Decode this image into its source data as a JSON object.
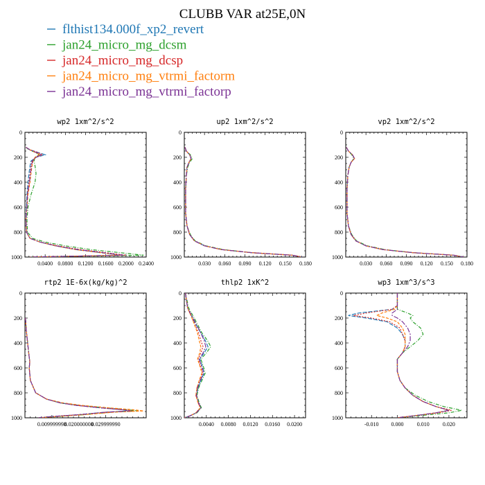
{
  "figure": {
    "title": "CLUBB VAR at25E,0N",
    "legend": [
      {
        "name": "flthist134.000f_xp2_revert",
        "color": "#1f77b4"
      },
      {
        "name": "jan24_micro_mg_dcsm",
        "color": "#2ca02c"
      },
      {
        "name": "jan24_micro_mg_dcsp",
        "color": "#d62728"
      },
      {
        "name": "jan24_micro_mg_vtrmi_factorm",
        "color": "#ff7f0e"
      },
      {
        "name": "jan24_micro_mg_vtrmi_factorp",
        "color": "#7b3294"
      }
    ]
  },
  "chart_data": [
    {
      "type": "line",
      "title": "wp2  1xm^2/s^2",
      "xlim": [
        0,
        0.24
      ],
      "ylim": [
        1000,
        0
      ],
      "xticks": [
        0.04,
        0.08,
        0.12,
        0.16,
        0.2,
        0.24
      ],
      "xtick_labels": [
        "0.0400",
        "0.0800",
        "0.1200",
        "0.1600",
        "0.2000",
        "0.2400"
      ],
      "yticks": [
        0,
        200,
        400,
        600,
        800,
        1000
      ],
      "ytick_labels": [
        "0",
        "200",
        "400",
        "600",
        "800",
        "1000"
      ],
      "y": [
        120,
        140,
        160,
        180,
        200,
        230,
        270,
        330,
        400,
        500,
        600,
        700,
        800,
        850,
        880,
        910,
        940,
        970,
        985,
        1000
      ],
      "series": [
        {
          "values": [
            0.002,
            0.01,
            0.025,
            0.04,
            0.022,
            0.012,
            0.01,
            0.008,
            0.006,
            0.004,
            0.003,
            0.002,
            0.003,
            0.01,
            0.03,
            0.06,
            0.1,
            0.16,
            0.19,
            0.01
          ]
        },
        {
          "values": [
            0.002,
            0.008,
            0.02,
            0.028,
            0.02,
            0.018,
            0.02,
            0.022,
            0.02,
            0.012,
            0.006,
            0.004,
            0.005,
            0.015,
            0.04,
            0.08,
            0.13,
            0.2,
            0.235,
            0.01
          ]
        },
        {
          "values": [
            0.002,
            0.01,
            0.025,
            0.035,
            0.022,
            0.014,
            0.012,
            0.01,
            0.008,
            0.005,
            0.004,
            0.002,
            0.003,
            0.01,
            0.03,
            0.065,
            0.11,
            0.17,
            0.2,
            0.01
          ]
        },
        {
          "values": [
            0.002,
            0.01,
            0.02,
            0.03,
            0.02,
            0.016,
            0.014,
            0.012,
            0.01,
            0.006,
            0.004,
            0.002,
            0.003,
            0.01,
            0.03,
            0.06,
            0.1,
            0.16,
            0.19,
            0.01
          ]
        },
        {
          "values": [
            0.002,
            0.01,
            0.022,
            0.033,
            0.021,
            0.015,
            0.013,
            0.011,
            0.009,
            0.005,
            0.004,
            0.002,
            0.003,
            0.01,
            0.03,
            0.062,
            0.105,
            0.165,
            0.195,
            0.01
          ]
        }
      ]
    },
    {
      "type": "line",
      "title": "up2  1xm^2/s^2",
      "xlim": [
        0,
        0.18
      ],
      "ylim": [
        1000,
        0
      ],
      "xticks": [
        0.03,
        0.06,
        0.09,
        0.12,
        0.15,
        0.18
      ],
      "xtick_labels": [
        "0.030",
        "0.060",
        "0.090",
        "0.120",
        "0.150",
        "0.180"
      ],
      "yticks": [
        0,
        200,
        400,
        600,
        800,
        1000
      ],
      "ytick_labels": [
        "0",
        "200",
        "400",
        "600",
        "800",
        "1000"
      ],
      "y": [
        120,
        150,
        180,
        210,
        240,
        280,
        350,
        450,
        550,
        650,
        750,
        820,
        870,
        910,
        940,
        965,
        985,
        1000
      ],
      "series": [
        {
          "values": [
            0.001,
            0.003,
            0.008,
            0.01,
            0.007,
            0.004,
            0.003,
            0.002,
            0.002,
            0.002,
            0.004,
            0.008,
            0.015,
            0.03,
            0.055,
            0.1,
            0.16,
            0.175
          ]
        },
        {
          "values": [
            0.001,
            0.003,
            0.009,
            0.012,
            0.008,
            0.005,
            0.003,
            0.002,
            0.002,
            0.002,
            0.004,
            0.009,
            0.016,
            0.032,
            0.058,
            0.1,
            0.16,
            0.175
          ]
        },
        {
          "values": [
            0.001,
            0.003,
            0.008,
            0.01,
            0.007,
            0.004,
            0.003,
            0.002,
            0.002,
            0.002,
            0.004,
            0.008,
            0.015,
            0.03,
            0.055,
            0.1,
            0.16,
            0.175
          ]
        },
        {
          "values": [
            0.001,
            0.003,
            0.008,
            0.01,
            0.007,
            0.004,
            0.003,
            0.002,
            0.002,
            0.002,
            0.004,
            0.008,
            0.015,
            0.03,
            0.055,
            0.1,
            0.16,
            0.175
          ]
        },
        {
          "values": [
            0.001,
            0.003,
            0.008,
            0.01,
            0.007,
            0.004,
            0.003,
            0.002,
            0.002,
            0.002,
            0.004,
            0.008,
            0.015,
            0.03,
            0.055,
            0.1,
            0.16,
            0.175
          ]
        }
      ]
    },
    {
      "type": "line",
      "title": "vp2  1xm^2/s^2",
      "xlim": [
        0,
        0.18
      ],
      "ylim": [
        1000,
        0
      ],
      "xticks": [
        0.03,
        0.06,
        0.09,
        0.12,
        0.15,
        0.18
      ],
      "xtick_labels": [
        "0.030",
        "0.060",
        "0.090",
        "0.120",
        "0.150",
        "0.180"
      ],
      "yticks": [
        0,
        200,
        400,
        600,
        800,
        1000
      ],
      "ytick_labels": [
        "0",
        "200",
        "400",
        "600",
        "800",
        "1000"
      ],
      "y": [
        120,
        150,
        180,
        210,
        240,
        280,
        350,
        450,
        550,
        650,
        750,
        820,
        870,
        910,
        940,
        965,
        985,
        1000
      ],
      "series": [
        {
          "values": [
            0.001,
            0.004,
            0.01,
            0.013,
            0.008,
            0.005,
            0.003,
            0.002,
            0.002,
            0.002,
            0.004,
            0.008,
            0.015,
            0.03,
            0.055,
            0.1,
            0.16,
            0.175
          ]
        },
        {
          "values": [
            0.001,
            0.004,
            0.009,
            0.012,
            0.008,
            0.005,
            0.003,
            0.002,
            0.002,
            0.002,
            0.004,
            0.009,
            0.016,
            0.032,
            0.058,
            0.1,
            0.16,
            0.175
          ]
        },
        {
          "values": [
            0.001,
            0.004,
            0.01,
            0.013,
            0.008,
            0.005,
            0.003,
            0.002,
            0.002,
            0.002,
            0.004,
            0.008,
            0.015,
            0.03,
            0.055,
            0.1,
            0.16,
            0.175
          ]
        },
        {
          "values": [
            0.001,
            0.004,
            0.01,
            0.013,
            0.008,
            0.005,
            0.003,
            0.002,
            0.002,
            0.002,
            0.004,
            0.008,
            0.015,
            0.03,
            0.055,
            0.1,
            0.16,
            0.175
          ]
        },
        {
          "values": [
            0.001,
            0.004,
            0.01,
            0.013,
            0.008,
            0.005,
            0.003,
            0.002,
            0.002,
            0.002,
            0.004,
            0.008,
            0.015,
            0.03,
            0.055,
            0.1,
            0.16,
            0.175
          ]
        }
      ]
    },
    {
      "type": "line",
      "title": "rtp2  1E-6x(kg/kg)^2",
      "xlim": [
        0,
        0.045
      ],
      "ylim": [
        1000,
        0
      ],
      "xticks": [
        0.01,
        0.02,
        0.03
      ],
      "xtick_labels": [
        "0.009999998",
        "0.020000000",
        "0.029999990"
      ],
      "yticks": [
        0,
        200,
        400,
        600,
        800,
        1000
      ],
      "ytick_labels": [
        "0",
        "200",
        "400",
        "600",
        "800",
        "1000"
      ],
      "y": [
        200,
        300,
        400,
        500,
        550,
        600,
        700,
        800,
        850,
        880,
        900,
        920,
        935,
        945,
        955,
        975,
        990,
        1000
      ],
      "series": [
        {
          "values": [
            0.0002,
            0.0005,
            0.001,
            0.0015,
            0.0018,
            0.0016,
            0.002,
            0.004,
            0.008,
            0.013,
            0.019,
            0.028,
            0.036,
            0.039,
            0.03,
            0.02,
            0.01,
            0.005
          ]
        },
        {
          "values": [
            0.0002,
            0.0005,
            0.001,
            0.0015,
            0.0018,
            0.0016,
            0.002,
            0.004,
            0.008,
            0.013,
            0.02,
            0.03,
            0.038,
            0.042,
            0.032,
            0.022,
            0.012,
            0.005
          ]
        },
        {
          "values": [
            0.0002,
            0.0005,
            0.001,
            0.0015,
            0.0018,
            0.0016,
            0.002,
            0.004,
            0.008,
            0.013,
            0.019,
            0.028,
            0.037,
            0.04,
            0.031,
            0.02,
            0.01,
            0.005
          ]
        },
        {
          "values": [
            0.0002,
            0.0005,
            0.001,
            0.0015,
            0.0018,
            0.0016,
            0.002,
            0.004,
            0.008,
            0.014,
            0.021,
            0.031,
            0.04,
            0.044,
            0.033,
            0.022,
            0.012,
            0.005
          ]
        },
        {
          "values": [
            0.0002,
            0.0005,
            0.001,
            0.0015,
            0.0018,
            0.0016,
            0.002,
            0.004,
            0.008,
            0.013,
            0.019,
            0.028,
            0.036,
            0.039,
            0.03,
            0.02,
            0.01,
            0.005
          ]
        }
      ]
    },
    {
      "type": "line",
      "title": "thlp2  1xK^2",
      "xlim": [
        0,
        0.022
      ],
      "ylim": [
        1000,
        0
      ],
      "xticks": [
        0.004,
        0.008,
        0.012,
        0.016,
        0.02
      ],
      "xtick_labels": [
        "0.0040",
        "0.0080",
        "0.0120",
        "0.0160",
        "0.0200"
      ],
      "yticks": [
        0,
        200,
        400,
        600,
        800,
        1000
      ],
      "ytick_labels": [
        "0",
        "200",
        "400",
        "600",
        "800",
        "1000"
      ],
      "y": [
        0,
        120,
        200,
        260,
        320,
        380,
        430,
        480,
        530,
        580,
        640,
        700,
        760,
        820,
        880,
        920,
        960,
        985,
        1000
      ],
      "series": [
        {
          "values": [
            0.0002,
            0.0006,
            0.0015,
            0.0022,
            0.003,
            0.0038,
            0.0043,
            0.0036,
            0.0028,
            0.0032,
            0.0036,
            0.003,
            0.0025,
            0.0022,
            0.0026,
            0.003,
            0.0022,
            0.001,
            0.0
          ]
        },
        {
          "values": [
            0.0002,
            0.0008,
            0.0018,
            0.0025,
            0.0032,
            0.0042,
            0.0048,
            0.004,
            0.003,
            0.0034,
            0.0038,
            0.0032,
            0.0026,
            0.0023,
            0.0027,
            0.0031,
            0.0023,
            0.001,
            0.0
          ]
        },
        {
          "values": [
            0.0002,
            0.0006,
            0.0014,
            0.002,
            0.0026,
            0.003,
            0.0034,
            0.003,
            0.0025,
            0.0029,
            0.0033,
            0.0028,
            0.0023,
            0.0021,
            0.0025,
            0.0029,
            0.0021,
            0.001,
            0.0
          ]
        },
        {
          "values": [
            0.0002,
            0.0006,
            0.0014,
            0.0019,
            0.0024,
            0.0027,
            0.003,
            0.0028,
            0.0024,
            0.0028,
            0.0032,
            0.0027,
            0.0023,
            0.0021,
            0.0025,
            0.0029,
            0.0021,
            0.001,
            0.0
          ]
        },
        {
          "values": [
            0.0002,
            0.0006,
            0.0016,
            0.0023,
            0.003,
            0.0036,
            0.0039,
            0.0034,
            0.0027,
            0.0031,
            0.0035,
            0.0029,
            0.0024,
            0.0022,
            0.0026,
            0.003,
            0.0022,
            0.001,
            0.0
          ]
        }
      ]
    },
    {
      "type": "line",
      "title": "wp3  1xm^3/s^3",
      "xlim": [
        -0.02,
        0.027
      ],
      "ylim": [
        1000,
        0
      ],
      "xticks": [
        -0.01,
        0.0,
        0.01,
        0.02
      ],
      "xtick_labels": [
        "-0.010",
        "0.000",
        "0.010",
        "0.020"
      ],
      "yticks": [
        0,
        200,
        400,
        600,
        800,
        1000
      ],
      "ytick_labels": [
        "0",
        "200",
        "400",
        "600",
        "800",
        "1000"
      ],
      "y": [
        0,
        100,
        130,
        160,
        180,
        200,
        230,
        280,
        330,
        380,
        430,
        480,
        530,
        580,
        630,
        700,
        760,
        820,
        870,
        910,
        940,
        960,
        980,
        1000
      ],
      "series": [
        {
          "values": [
            0.0,
            0.0,
            -0.002,
            -0.015,
            -0.019,
            -0.012,
            -0.004,
            0.0,
            0.002,
            0.003,
            0.003,
            0.002,
            0.0,
            0.0,
            0.0,
            0.001,
            0.003,
            0.006,
            0.01,
            0.015,
            0.02,
            0.015,
            0.008,
            0.0
          ]
        },
        {
          "values": [
            0.0,
            0.0,
            0.0,
            0.004,
            0.006,
            0.005,
            0.006,
            0.009,
            0.01,
            0.008,
            0.005,
            0.002,
            0.0,
            0.0,
            0.0,
            0.001,
            0.003,
            0.007,
            0.012,
            0.018,
            0.025,
            0.02,
            0.01,
            0.0
          ]
        },
        {
          "values": [
            0.0,
            0.0,
            -0.002,
            -0.012,
            -0.017,
            -0.01,
            -0.003,
            0.001,
            0.002,
            0.003,
            0.003,
            0.002,
            0.0,
            0.0,
            0.0,
            0.001,
            0.003,
            0.006,
            0.01,
            0.015,
            0.021,
            0.016,
            0.008,
            0.0
          ]
        },
        {
          "values": [
            0.0,
            0.0,
            -0.001,
            -0.006,
            -0.008,
            -0.004,
            0.0,
            0.002,
            0.003,
            0.003,
            0.003,
            0.002,
            0.0,
            0.0,
            0.0,
            0.001,
            0.003,
            0.006,
            0.01,
            0.015,
            0.02,
            0.015,
            0.008,
            0.0
          ]
        },
        {
          "values": [
            0.0,
            0.0,
            0.0,
            -0.002,
            -0.002,
            0.0,
            0.002,
            0.004,
            0.005,
            0.005,
            0.004,
            0.002,
            0.0,
            0.0,
            0.0,
            0.001,
            0.003,
            0.006,
            0.01,
            0.015,
            0.02,
            0.015,
            0.008,
            0.0
          ]
        }
      ]
    }
  ]
}
